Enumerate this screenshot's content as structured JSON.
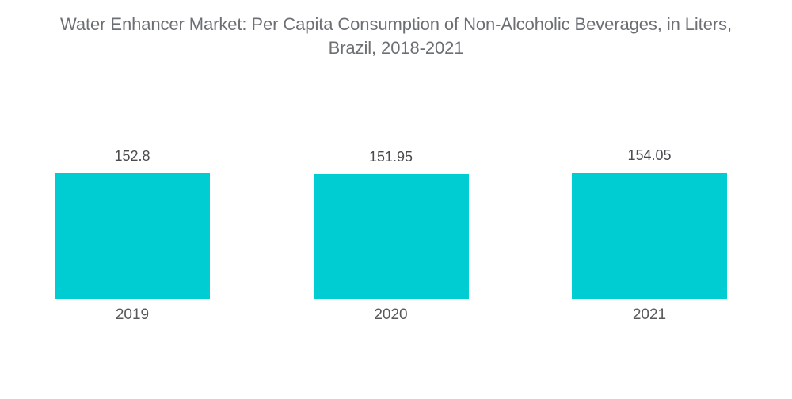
{
  "title": "Water Enhancer Market: Per Capita Consumption of Non-Alcoholic Beverages, in Liters,\nBrazil, 2018-2021",
  "colors": {
    "background": "#ffffff",
    "bar": "#00CDD1",
    "title_text": "#6c7074",
    "value_text": "#4a4b4d",
    "axis_text": "#56585a"
  },
  "chart_data": {
    "type": "bar",
    "title": "Water Enhancer Market: Per Capita Consumption of Non-Alcoholic Beverages, in Liters, Brazil, 2018-2021",
    "categories": [
      "2019",
      "2020",
      "2021"
    ],
    "values": [
      152.8,
      151.95,
      154.05
    ],
    "series_name": "Per Capita Consumption of Non-Alcoholic Beverages (Liters)",
    "xlabel": "",
    "ylabel": "",
    "grid": false,
    "legend": false,
    "data_labels": true,
    "axes_hidden": true,
    "bar_color": "#00CDD1",
    "value_label_position": "above-bar",
    "category_label_position": "below-bar"
  }
}
